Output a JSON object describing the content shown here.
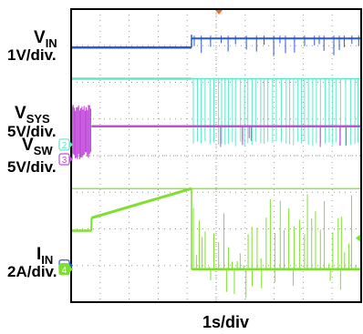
{
  "chart_data": {
    "type": "line",
    "title": "",
    "xlabel": "1s/div",
    "ylabel": "",
    "grid": true,
    "x": {
      "divisions": 10,
      "time_per_division_s": 1,
      "trigger_at_division": 4.15
    },
    "y": {
      "divisions": 8
    },
    "channels": [
      {
        "id": "1",
        "name_main": "V",
        "name_sub": "IN",
        "scale": "1V/div.",
        "color": "#2a57d6",
        "ground_marker_div": 1.0,
        "segments": [
          {
            "x_div": [
              0.0,
              4.15
            ],
            "level_div": 6.95
          },
          {
            "x_div": [
              4.15,
              10.0
            ],
            "level_div": 7.2,
            "ripple": "downward spikes"
          }
        ]
      },
      {
        "id": "2",
        "name_main": "V",
        "name_sub": "SYS",
        "scale": "5V/div.",
        "color": "#5ce8c8",
        "ground_marker_div": 4.3,
        "segments": [
          {
            "x_div": [
              0.0,
              4.15
            ],
            "level_div": 6.1
          },
          {
            "x_div": [
              4.15,
              10.0
            ],
            "level_div": 6.1,
            "ripple": "dense pulses down to ~4.4 div"
          }
        ]
      },
      {
        "id": "3",
        "name_main": "V",
        "name_sub": "SW",
        "scale": "5V/div.",
        "color": "#c24ddb",
        "ground_marker_div": 3.9,
        "segments": [
          {
            "x_div": [
              0.0,
              0.7
            ],
            "level_div": 4.8,
            "ripple": "switching burst 3.9–5.4 div"
          },
          {
            "x_div": [
              0.7,
              10.0
            ],
            "level_div": 4.8,
            "ripple": "occasional spikes down to ~3.9 div"
          }
        ]
      },
      {
        "id": "4",
        "name_main": "I",
        "name_sub": "IN",
        "scale": "2A/div.",
        "color": "#7ee02e",
        "ground_marker_div": 0.9,
        "segments": [
          {
            "x_div": [
              0.0,
              0.7
            ],
            "level_div": 1.95
          },
          {
            "x_div": [
              0.7,
              4.15
            ],
            "from_div": 2.3,
            "to_div": 3.1
          },
          {
            "x_div": [
              4.15,
              10.0
            ],
            "level_div": 0.9,
            "ripple": "pulses up to ~3.0 div"
          }
        ],
        "reference_line_div": 3.1
      }
    ]
  }
}
